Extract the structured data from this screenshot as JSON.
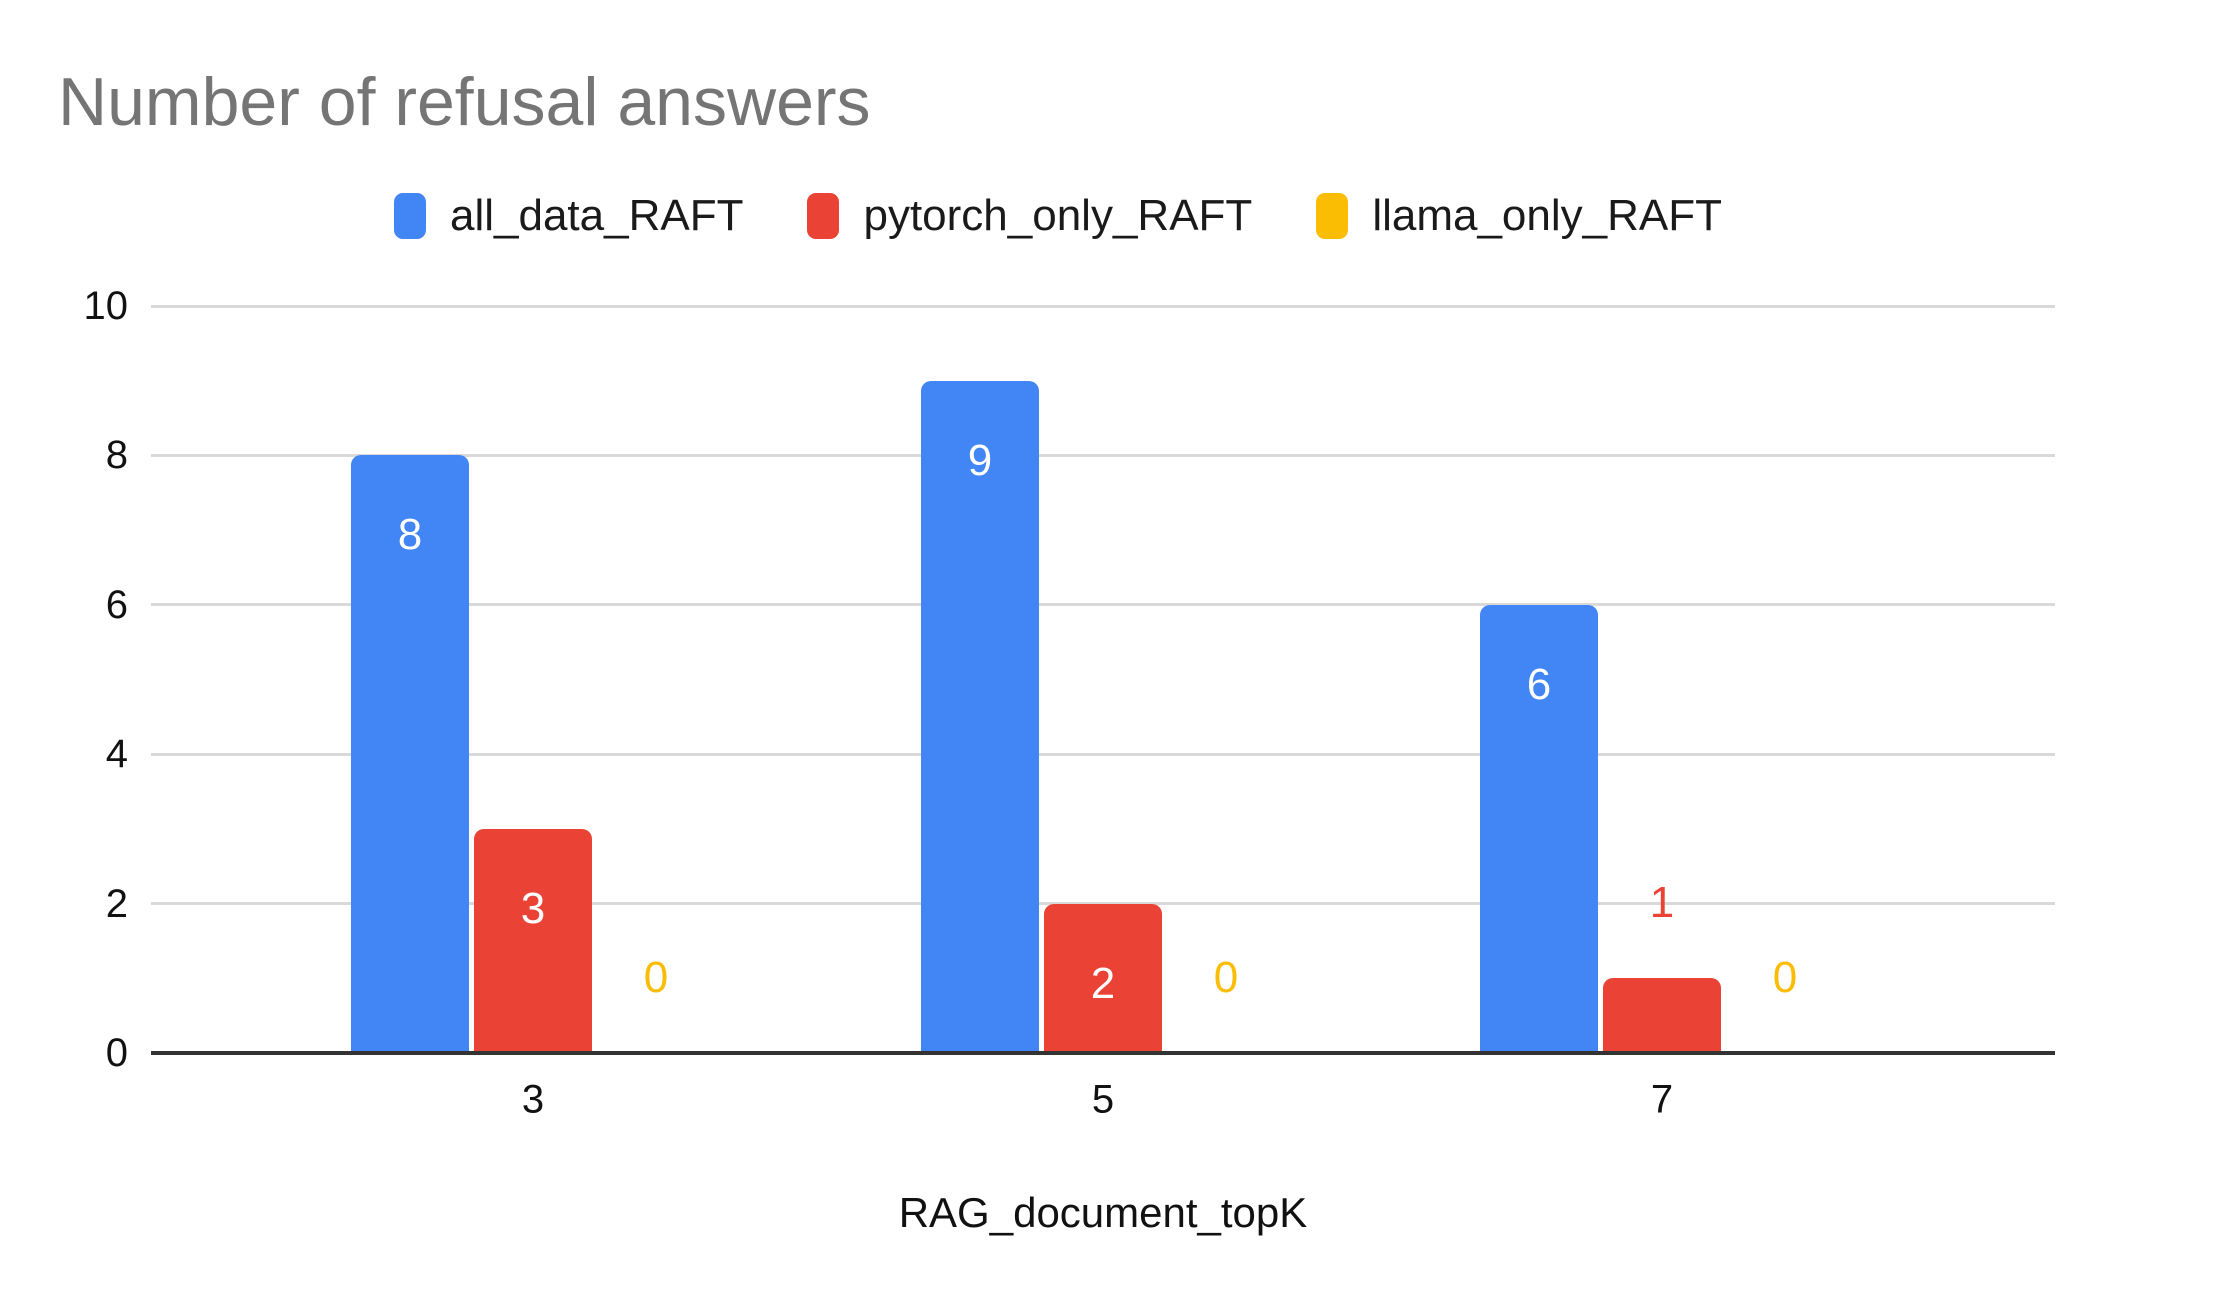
{
  "title": "Number of refusal answers",
  "chart_data": {
    "type": "bar",
    "title": "Number of refusal answers",
    "categories": [
      "3",
      "5",
      "7"
    ],
    "series": [
      {
        "name": "all_data_RAFT",
        "color": "#4285F4",
        "values": [
          8,
          9,
          6
        ]
      },
      {
        "name": "pytorch_only_RAFT",
        "color": "#EA4335",
        "values": [
          3,
          2,
          1
        ]
      },
      {
        "name": "llama_only_RAFT",
        "color": "#FBBC04",
        "values": [
          0,
          0,
          0
        ]
      }
    ],
    "xlabel": "RAG_document_topK",
    "ylabel": "",
    "ylim": [
      0,
      10
    ],
    "yticks": [
      0,
      2,
      4,
      6,
      8,
      10
    ],
    "grid": true,
    "legend_position": "top",
    "bar_label_inside_color": "#FFFFFF"
  },
  "colors": {
    "background": "#FFFFFF",
    "title_text": "#757575",
    "axis_text": "#111111",
    "gridline": "#D9D9D9",
    "axis_line": "#333333"
  }
}
